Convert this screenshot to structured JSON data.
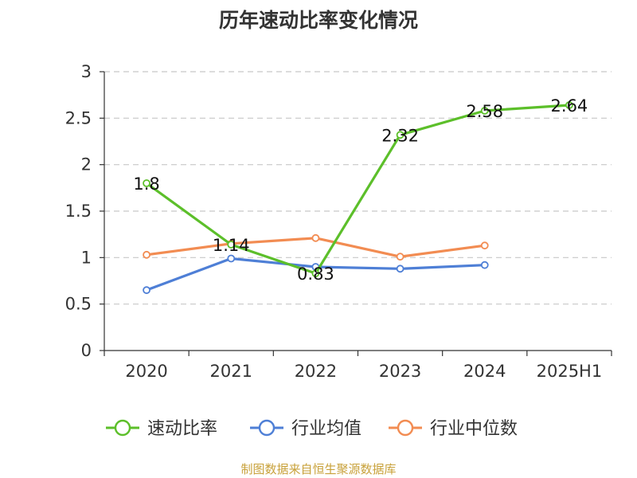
{
  "chart_data": {
    "type": "line",
    "title": "历年速动比率变化情况",
    "categories": [
      "2020",
      "2021",
      "2022",
      "2023",
      "2024",
      "2025H1"
    ],
    "ylim": [
      0,
      3
    ],
    "yticks": [
      "0",
      "0.5",
      "1",
      "1.5",
      "2",
      "2.5",
      "3"
    ],
    "grid": true,
    "legend_position": "bottom",
    "series": [
      {
        "name": "速动比率",
        "color": "#5cbf2a",
        "values": [
          1.8,
          1.14,
          0.83,
          2.32,
          2.58,
          2.64
        ],
        "labels": [
          "1.8",
          "1.14",
          "0.83",
          "2.32",
          "2.58",
          "2.64"
        ]
      },
      {
        "name": "行业均值",
        "color": "#4e7fd6",
        "values": [
          0.65,
          0.99,
          0.9,
          0.88,
          0.92,
          null
        ]
      },
      {
        "name": "行业中位数",
        "color": "#f28c52",
        "values": [
          1.03,
          1.15,
          1.21,
          1.01,
          1.13,
          null
        ]
      }
    ]
  },
  "source": "制图数据来自恒生聚源数据库"
}
